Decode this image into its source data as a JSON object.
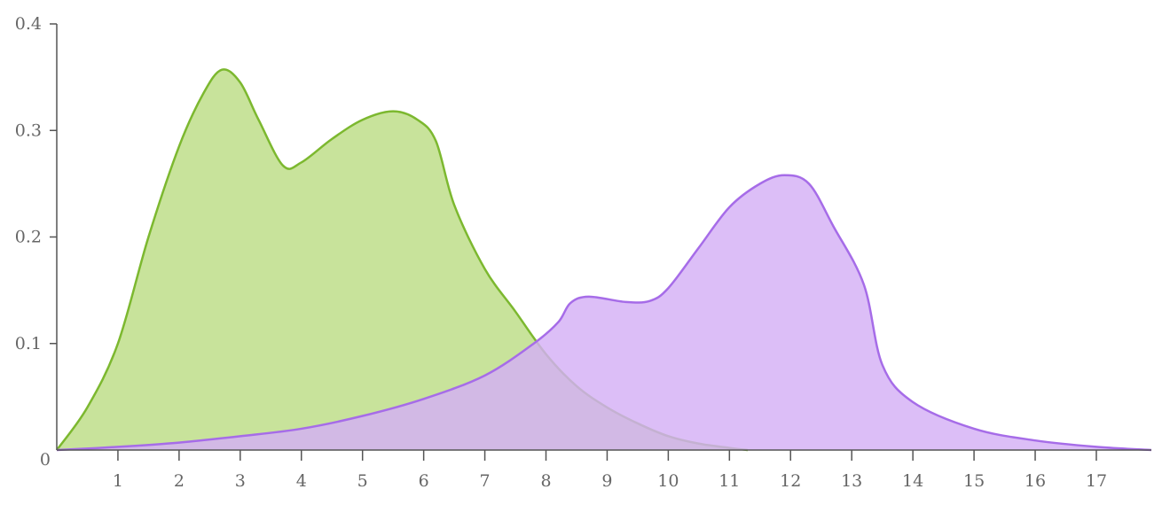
{
  "chart_data": {
    "type": "area",
    "xlim": [
      0,
      17.9
    ],
    "ylim": [
      0,
      0.4
    ],
    "x_ticks": [
      1,
      2,
      3,
      4,
      5,
      6,
      7,
      8,
      9,
      10,
      11,
      12,
      13,
      14,
      15,
      16,
      17
    ],
    "y_ticks": [
      0.1,
      0.2,
      0.3,
      0.4
    ],
    "y_tick_labels": [
      "0.1",
      "0.2",
      "0.3",
      "0.4"
    ],
    "origin_label": "0",
    "grid": false,
    "legend": "none",
    "series": [
      {
        "color": "#7cb82f",
        "fill": "#c8e39b",
        "points": [
          [
            0,
            0
          ],
          [
            0.5,
            0.04
          ],
          [
            1,
            0.1
          ],
          [
            1.5,
            0.2
          ],
          [
            2,
            0.285
          ],
          [
            2.4,
            0.335
          ],
          [
            2.7,
            0.357
          ],
          [
            3,
            0.345
          ],
          [
            3.3,
            0.31
          ],
          [
            3.7,
            0.267
          ],
          [
            4,
            0.27
          ],
          [
            4.5,
            0.292
          ],
          [
            5,
            0.31
          ],
          [
            5.5,
            0.318
          ],
          [
            5.9,
            0.31
          ],
          [
            6.2,
            0.29
          ],
          [
            6.5,
            0.23
          ],
          [
            7,
            0.17
          ],
          [
            7.5,
            0.13
          ],
          [
            8,
            0.09
          ],
          [
            8.5,
            0.06
          ],
          [
            9,
            0.04
          ],
          [
            9.5,
            0.025
          ],
          [
            10,
            0.013
          ],
          [
            10.5,
            0.006
          ],
          [
            11,
            0.002
          ],
          [
            11.3,
            0
          ]
        ]
      },
      {
        "color": "#a66ce8",
        "fill": "#d4b0f5",
        "points": [
          [
            0,
            0
          ],
          [
            1,
            0.003
          ],
          [
            2,
            0.007
          ],
          [
            3,
            0.013
          ],
          [
            4,
            0.02
          ],
          [
            5,
            0.032
          ],
          [
            6,
            0.048
          ],
          [
            7,
            0.07
          ],
          [
            7.8,
            0.1
          ],
          [
            8.2,
            0.12
          ],
          [
            8.4,
            0.138
          ],
          [
            8.7,
            0.144
          ],
          [
            9.3,
            0.139
          ],
          [
            9.7,
            0.14
          ],
          [
            10,
            0.152
          ],
          [
            10.5,
            0.19
          ],
          [
            11,
            0.228
          ],
          [
            11.5,
            0.25
          ],
          [
            11.9,
            0.258
          ],
          [
            12.3,
            0.25
          ],
          [
            12.7,
            0.21
          ],
          [
            13.2,
            0.155
          ],
          [
            13.5,
            0.08
          ],
          [
            14,
            0.045
          ],
          [
            15,
            0.02
          ],
          [
            16,
            0.009
          ],
          [
            17,
            0.003
          ],
          [
            17.9,
            0
          ]
        ]
      }
    ]
  }
}
